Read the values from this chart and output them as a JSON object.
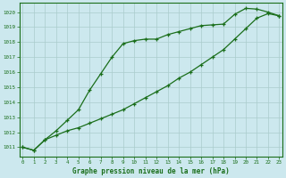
{
  "title": "Graphe pression niveau de la mer (hPa)",
  "bg_color": "#cce8ee",
  "grid_color": "#aacccc",
  "line_color": "#1a6e1a",
  "x_ticks": [
    0,
    1,
    2,
    3,
    4,
    5,
    6,
    7,
    8,
    9,
    10,
    11,
    12,
    13,
    14,
    15,
    16,
    17,
    18,
    19,
    20,
    21,
    22,
    23
  ],
  "y_ticks": [
    1011,
    1012,
    1013,
    1014,
    1015,
    1016,
    1017,
    1018,
    1019,
    1020
  ],
  "ylim": [
    1010.4,
    1020.6
  ],
  "xlim": [
    -0.3,
    23.3
  ],
  "series1_x": [
    0,
    1,
    2,
    3,
    4,
    5,
    6,
    7,
    8,
    9,
    10,
    11,
    12,
    13,
    14,
    15,
    16,
    17,
    18,
    19,
    20,
    21,
    22,
    23
  ],
  "series1_y": [
    1011.0,
    1010.8,
    1011.5,
    1012.1,
    1012.8,
    1013.5,
    1014.8,
    1015.9,
    1017.0,
    1017.9,
    1018.1,
    1018.2,
    1018.2,
    1018.5,
    1018.7,
    1018.9,
    1019.1,
    1019.15,
    1019.2,
    1019.85,
    1020.25,
    1020.2,
    1020.0,
    1019.75
  ],
  "series2_x": [
    0,
    1,
    2,
    3,
    4,
    5,
    6,
    7,
    8,
    9,
    10,
    11,
    12,
    13,
    14,
    15,
    16,
    17,
    18,
    19,
    20,
    21,
    22,
    23
  ],
  "series2_y": [
    1011.0,
    1010.8,
    1011.5,
    1011.8,
    1012.1,
    1012.3,
    1012.6,
    1012.9,
    1013.2,
    1013.5,
    1013.9,
    1014.3,
    1014.7,
    1015.1,
    1015.6,
    1016.0,
    1016.5,
    1017.0,
    1017.5,
    1018.2,
    1018.9,
    1019.6,
    1019.9,
    1019.75
  ]
}
